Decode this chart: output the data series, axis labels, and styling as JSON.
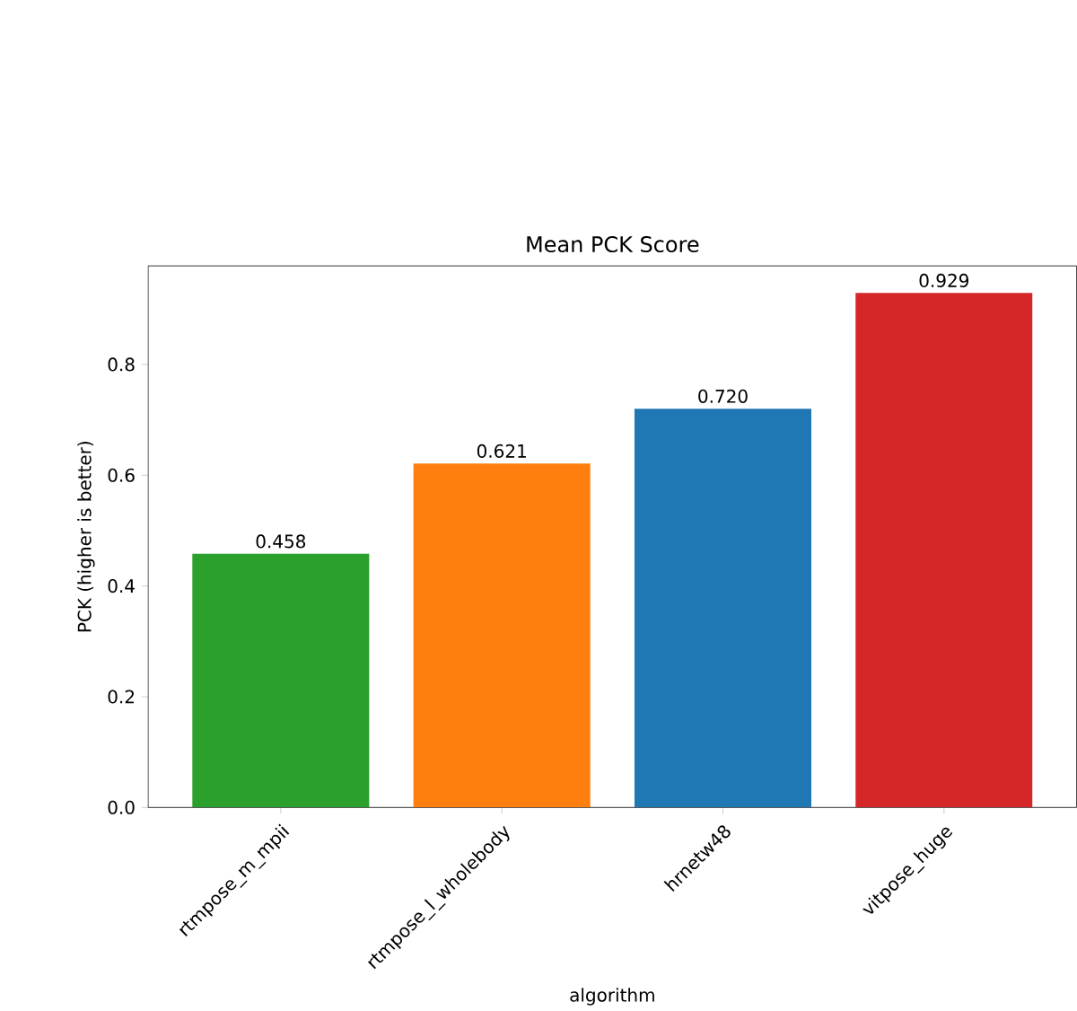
{
  "chart_data": {
    "type": "bar",
    "title": "Mean PCK Score",
    "xlabel": "algorithm",
    "ylabel": "PCK (higher is better)",
    "categories": [
      "rtmpose_m_mpii",
      "rtmpose_l_wholebody",
      "hrnetw48",
      "vitpose_huge"
    ],
    "values": [
      0.458,
      0.621,
      0.72,
      0.929
    ],
    "colors": [
      "#2ca02c",
      "#ff7f0e",
      "#1f77b4",
      "#d62728"
    ],
    "value_labels": [
      "0.458",
      "0.621",
      "0.720",
      "0.929"
    ],
    "ylim": [
      0,
      0.978
    ],
    "yticks": [
      {
        "value": 0,
        "label": "0.0"
      },
      0.2,
      0.4,
      0.6,
      0.8
    ]
  }
}
